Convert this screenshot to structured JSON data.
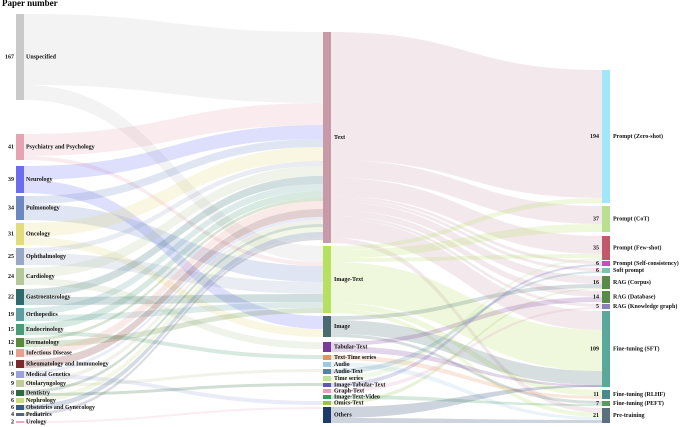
{
  "header": {
    "title": "Paper number"
  },
  "colors": {
    "unspecified": "#c9c9c9",
    "psychiatry": "#e6a3b4",
    "neurology": "#6b6cf0",
    "pulmonology": "#6d87c2",
    "oncology": "#e4dc7c",
    "ophthalmology": "#99a8c4",
    "cardiology": "#b5c89a",
    "gastro": "#2f6b6d",
    "orthopedics": "#5f9ea0",
    "endocrinology": "#4a9c78",
    "dermatology": "#5a8a3a",
    "infectious": "#e8a090",
    "rheumatology": "#7a2a2a",
    "genetics": "#9aa3e0",
    "otolaryngology": "#c0c9a0",
    "dentistry": "#2f6b3a",
    "nephrology": "#c9d98a",
    "obstetrics": "#3a5a8a",
    "pediatrics": "#5a6080",
    "urology": "#e8a8c8",
    "text": "#c89aa8",
    "image_text": "#b8e060",
    "image": "#4a6a70",
    "tabular_text": "#7a3a9a",
    "text_time": "#e89060",
    "audio": "#a0c8e0",
    "audio_text": "#4a8aa0",
    "time_series": "#c0e0a0",
    "image_tabular_text": "#5a5ab0",
    "graph_text": "#e0a0c0",
    "image_text_video": "#3a9a5a",
    "omics_text": "#9ac050",
    "others": "#1e3a6a",
    "zero_shot": "#a0e8f8",
    "cot": "#b8e090",
    "few_shot": "#c05a6a",
    "self_consistency": "#c050c0",
    "soft_prompt": "#80c0b0",
    "rag_corpus": "#5a8a4a",
    "rag_database": "#5a8a4a",
    "rag_kg": "#8a80c0",
    "sft": "#5aa89a",
    "rlhf": "#4a8a8a",
    "peft": "#5a9a5a",
    "pretraining": "#5a7080"
  },
  "left_nodes": [
    {
      "key": "unspecified",
      "label": "Unspecified",
      "value": "167"
    },
    {
      "key": "psychiatry",
      "label": "Psychiatry and Psychology",
      "value": "41"
    },
    {
      "key": "neurology",
      "label": "Neurology",
      "value": "39"
    },
    {
      "key": "pulmonology",
      "label": "Pulmonology",
      "value": "34"
    },
    {
      "key": "oncology",
      "label": "Oncology",
      "value": "31"
    },
    {
      "key": "ophthalmology",
      "label": "Ophthalmology",
      "value": "25"
    },
    {
      "key": "cardiology",
      "label": "Cardiology",
      "value": "24"
    },
    {
      "key": "gastro",
      "label": "Gastroenterology",
      "value": "22"
    },
    {
      "key": "orthopedics",
      "label": "Orthopedics",
      "value": "19"
    },
    {
      "key": "endocrinology",
      "label": "Endocrinology",
      "value": "15"
    },
    {
      "key": "dermatology",
      "label": "Dermatology",
      "value": "12"
    },
    {
      "key": "infectious",
      "label": "Infectious Disease",
      "value": "11"
    },
    {
      "key": "rheumatology",
      "label": "Rheumatology and Immunology",
      "value": "11"
    },
    {
      "key": "genetics",
      "label": "Medical Genetics",
      "value": "9"
    },
    {
      "key": "otolaryngology",
      "label": "Otolaryngology",
      "value": "9"
    },
    {
      "key": "dentistry",
      "label": "Dentistry",
      "value": "8"
    },
    {
      "key": "nephrology",
      "label": "Nephrology",
      "value": "6"
    },
    {
      "key": "obstetrics",
      "label": "Obstetrics and Gynecology",
      "value": "6"
    },
    {
      "key": "pediatrics",
      "label": "Pediatrics",
      "value": "4"
    },
    {
      "key": "urology",
      "label": "Urology",
      "value": "2"
    }
  ],
  "middle_nodes": [
    {
      "key": "text",
      "label": "Text"
    },
    {
      "key": "image_text",
      "label": "Image-Text"
    },
    {
      "key": "image",
      "label": "Image"
    },
    {
      "key": "tabular_text",
      "label": "Tabular-Text"
    },
    {
      "key": "text_time",
      "label": "Text-Time series"
    },
    {
      "key": "audio",
      "label": "Audio"
    },
    {
      "key": "audio_text",
      "label": "Audio-Text"
    },
    {
      "key": "time_series",
      "label": "Time series"
    },
    {
      "key": "image_tabular_text",
      "label": "Image-Tabular-Text"
    },
    {
      "key": "graph_text",
      "label": "Graph-Text"
    },
    {
      "key": "image_text_video",
      "label": "Image-Text-Video"
    },
    {
      "key": "omics_text",
      "label": "Omics-Text"
    },
    {
      "key": "others",
      "label": "Others"
    }
  ],
  "right_nodes": [
    {
      "key": "zero_shot",
      "label": "Prompt (Zero-shot)",
      "value": "194"
    },
    {
      "key": "cot",
      "label": "Prompt (CoT)",
      "value": "37"
    },
    {
      "key": "few_shot",
      "label": "Prompt (Few-shot)",
      "value": "35"
    },
    {
      "key": "self_consistency",
      "label": "Prompt (Self-consistency)",
      "value": "6"
    },
    {
      "key": "soft_prompt",
      "label": "Soft prompt",
      "value": "6"
    },
    {
      "key": "rag_corpus",
      "label": "RAG (Corpus)",
      "value": "16"
    },
    {
      "key": "rag_database",
      "label": "RAG (Database)",
      "value": "14"
    },
    {
      "key": "rag_kg",
      "label": "RAG (Knowledge graph)",
      "value": "5"
    },
    {
      "key": "sft",
      "label": "Fine-tuning (SFT)",
      "value": "109"
    },
    {
      "key": "rlhf",
      "label": "Fine-tuning (RLHF)",
      "value": "11"
    },
    {
      "key": "peft",
      "label": "Fine-tuning (PEFT)",
      "value": "7"
    },
    {
      "key": "pretraining",
      "label": "Pre-training",
      "value": "21"
    }
  ]
}
